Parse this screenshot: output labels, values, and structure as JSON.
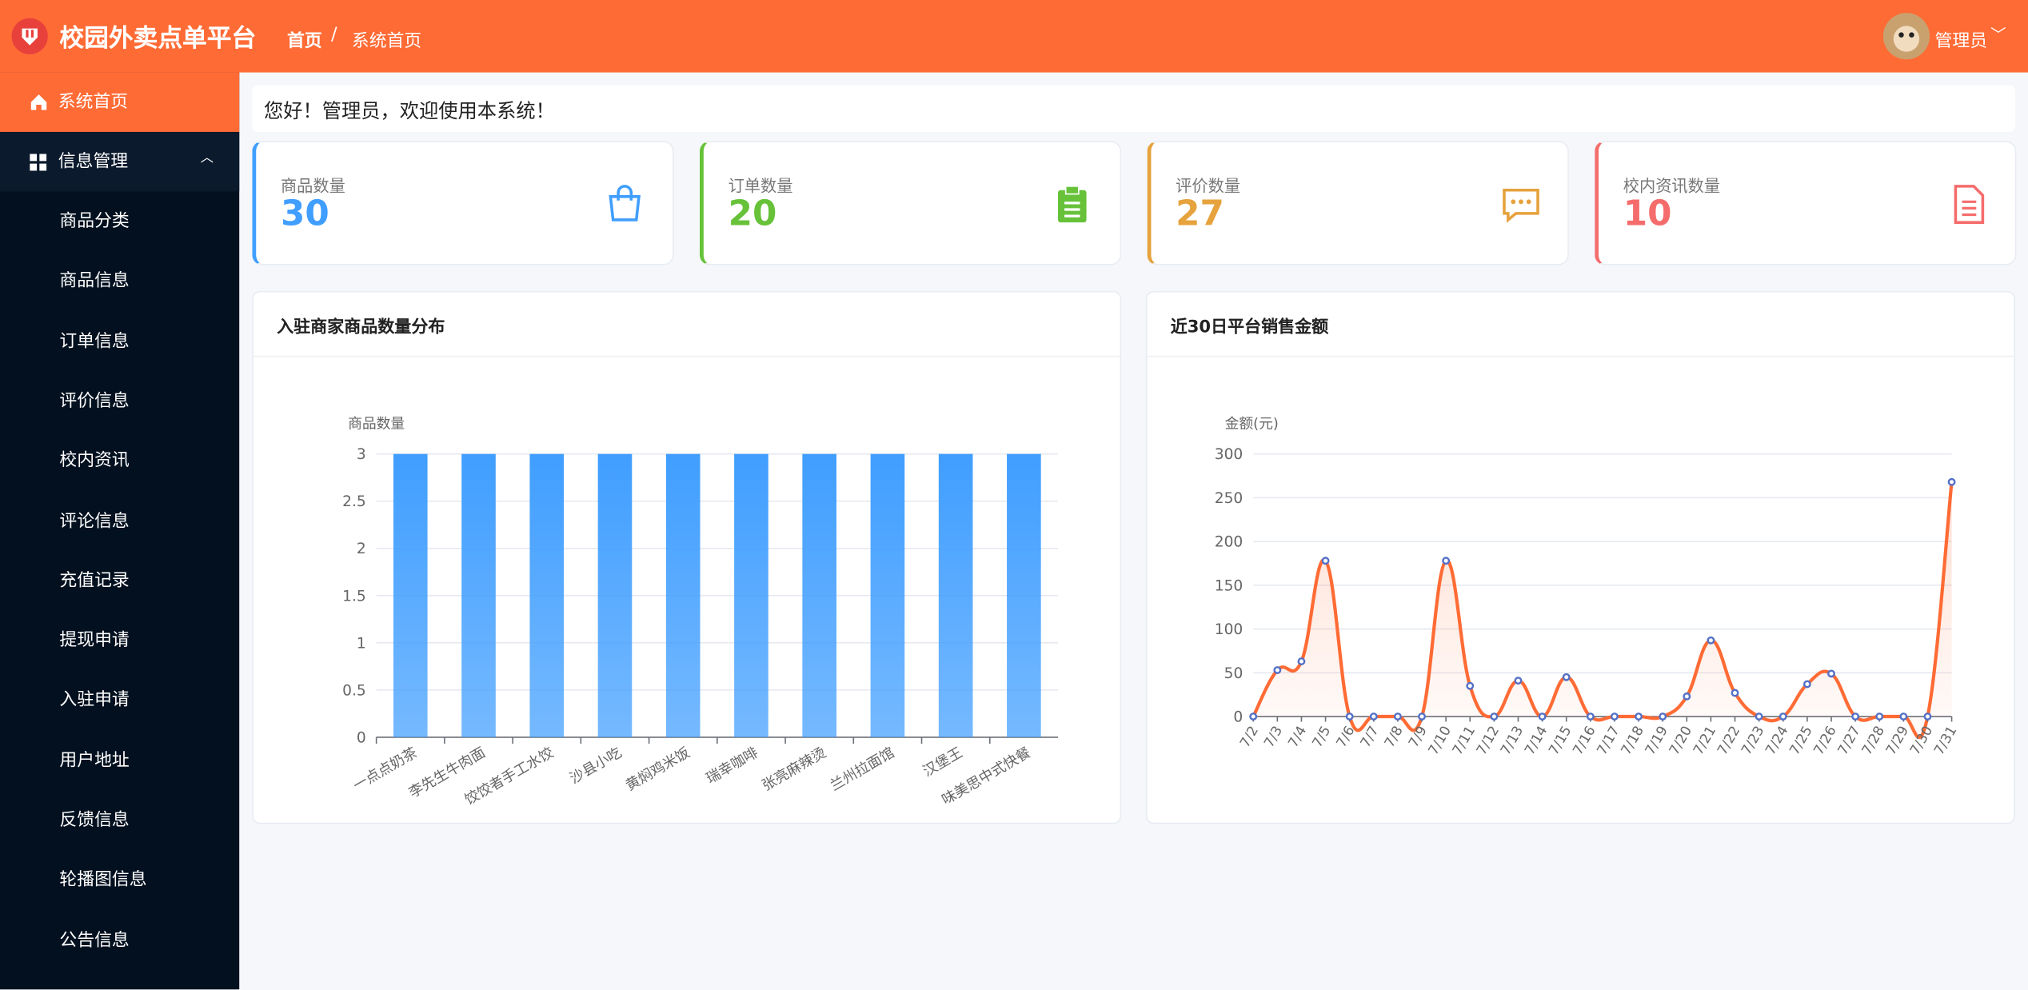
{
  "header": {
    "title": "校园外卖点单平台",
    "breadcrumb": [
      "首页",
      "系统首页"
    ],
    "user": "管理员"
  },
  "sidebar": {
    "active": "系统首页",
    "group": "信息管理",
    "items": [
      "商品分类",
      "商品信息",
      "订单信息",
      "评价信息",
      "校内资讯",
      "评论信息",
      "充值记录",
      "提现申请",
      "入驻申请",
      "用户地址",
      "反馈信息",
      "轮播图信息",
      "公告信息"
    ]
  },
  "greeting": "您好！管理员，欢迎使用本系统！",
  "cards": [
    {
      "label": "商品数量",
      "value": 30,
      "color": "#409eff"
    },
    {
      "label": "订单数量",
      "value": 20,
      "color": "#67c23a"
    },
    {
      "label": "评价数量",
      "value": 27,
      "color": "#e6a23c"
    },
    {
      "label": "校内资讯数量",
      "value": 10,
      "color": "#f56c6c"
    }
  ],
  "chart_data": [
    {
      "type": "bar",
      "title": "入驻商家商品数量分布",
      "y_label": "商品数量",
      "categories": [
        "一点点奶茶",
        "李先生牛肉面",
        "饺饺者手工水饺",
        "沙县小吃",
        "黄焖鸡米饭",
        "瑞幸咖啡",
        "张亮麻辣烫",
        "兰州拉面馆",
        "汉堡王",
        "味美思中式快餐"
      ],
      "values": [
        3,
        3,
        3,
        3,
        3,
        3,
        3,
        3,
        3,
        3
      ],
      "color": "#409eff",
      "ylim": [
        0,
        3
      ],
      "yticks": [
        0,
        0.5,
        1,
        1.5,
        2,
        2.5,
        3
      ],
      "grid": true
    },
    {
      "type": "line",
      "title": "近30日平台销售金额",
      "y_label": "金额(元)",
      "categories": [
        "7/2",
        "7/3",
        "7/4",
        "7/5",
        "7/6",
        "7/7",
        "7/8",
        "7/9",
        "7/10",
        "7/11",
        "7/12",
        "7/13",
        "7/14",
        "7/15",
        "7/16",
        "7/17",
        "7/18",
        "7/19",
        "7/20",
        "7/21",
        "7/22",
        "7/23",
        "7/24",
        "7/25",
        "7/26",
        "7/27",
        "7/28",
        "7/29",
        "7/30",
        "7/31"
      ],
      "values": [
        0,
        53,
        63,
        178,
        0,
        0,
        0,
        0,
        178,
        35,
        0,
        41,
        0,
        45,
        0,
        0,
        0,
        0,
        23,
        87,
        27,
        0,
        0,
        37,
        49,
        0,
        0,
        0,
        0,
        268
      ],
      "color": "#ff6b35",
      "ylim": [
        0,
        300
      ],
      "yticks": [
        0,
        50,
        100,
        150,
        200,
        250,
        300
      ],
      "grid": true
    }
  ]
}
